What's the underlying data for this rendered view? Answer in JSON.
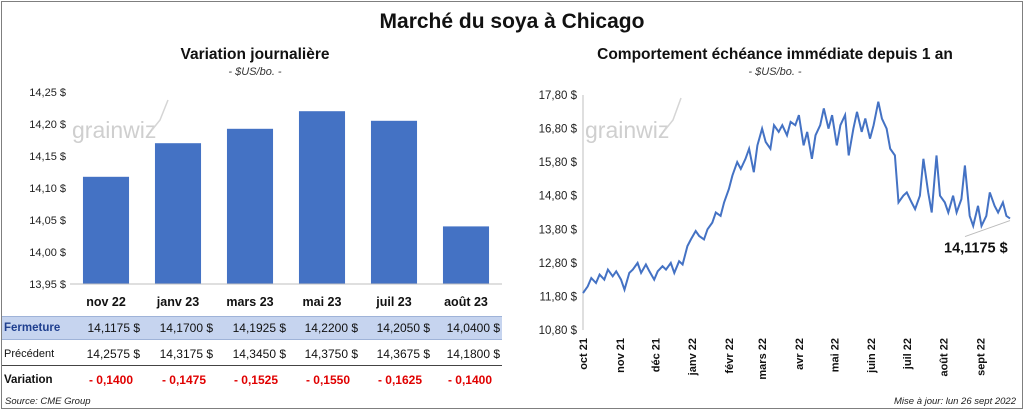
{
  "title": "Marché du soya à Chicago",
  "left_chart": {
    "title": "Variation  journalière",
    "unit": "- $US/bo. -",
    "watermark": "grainwiz"
  },
  "right_chart": {
    "title": "Comportement  échéance immédiate depuis 1 an",
    "unit": "- $US/bo. -",
    "watermark": "grainwiz",
    "annotation": "14,1175 $"
  },
  "table": {
    "rows": [
      {
        "label": "Fermeture",
        "values": [
          "14,1175  $",
          "14,1700  $",
          "14,1925  $",
          "14,2200  $",
          "14,2050  $",
          "14,0400  $"
        ]
      },
      {
        "label": "Précédent",
        "values": [
          "14,2575  $",
          "14,3175  $",
          "14,3450  $",
          "14,3750  $",
          "14,3675  $",
          "14,1800  $"
        ]
      },
      {
        "label": "Variation",
        "values": [
          "- 0,1400",
          "- 0,1475",
          "- 0,1525",
          "- 0,1550",
          "- 0,1625",
          "- 0,1400"
        ]
      }
    ]
  },
  "footer": {
    "source": "Source: CME Group",
    "updated": "Mise à jour: lun 26 sept 2022"
  },
  "colors": {
    "bar": "#4472c4",
    "line": "#4472c4",
    "negative": "#e00000",
    "highlight_row": "#c6d4ef"
  },
  "chart_data": [
    {
      "type": "bar",
      "title": "Variation  journalière",
      "categories": [
        "nov 22",
        "janv 23",
        "mars 23",
        "mai 23",
        "juil 23",
        "août 23"
      ],
      "values": [
        14.1175,
        14.17,
        14.1925,
        14.22,
        14.205,
        14.04
      ],
      "ylim": [
        13.95,
        14.25
      ],
      "yticks": [
        "13,95 $",
        "14,00 $",
        "14,05 $",
        "14,10 $",
        "14,15 $",
        "14,20 $",
        "14,25 $"
      ],
      "grid": false
    },
    {
      "type": "line",
      "title": "Comportement  échéance immédiate depuis 1 an",
      "ylim": [
        10.8,
        17.8
      ],
      "yticks": [
        "10,80 $",
        "11,80 $",
        "12,80 $",
        "13,80 $",
        "14,80 $",
        "15,80 $",
        "16,80 $",
        "17,80 $"
      ],
      "xticks": [
        "oct 21",
        "nov 21",
        "déc 21",
        "janv 22",
        "févr 22",
        "mars 22",
        "avr 22",
        "mai 22",
        "juin 22",
        "juil 22",
        "août 22",
        "sept 22"
      ],
      "x": [
        "2021-10-01",
        "2021-10-05",
        "2021-10-08",
        "2021-10-12",
        "2021-10-15",
        "2021-10-19",
        "2021-10-22",
        "2021-10-26",
        "2021-10-29",
        "2021-11-02",
        "2021-11-05",
        "2021-11-09",
        "2021-11-12",
        "2021-11-16",
        "2021-11-19",
        "2021-11-23",
        "2021-11-26",
        "2021-11-30",
        "2021-12-03",
        "2021-12-07",
        "2021-12-10",
        "2021-12-14",
        "2021-12-17",
        "2021-12-21",
        "2021-12-24",
        "2021-12-28",
        "2021-12-31",
        "2022-01-04",
        "2022-01-07",
        "2022-01-11",
        "2022-01-14",
        "2022-01-18",
        "2022-01-21",
        "2022-01-25",
        "2022-01-28",
        "2022-02-01",
        "2022-02-04",
        "2022-02-08",
        "2022-02-11",
        "2022-02-15",
        "2022-02-18",
        "2022-02-22",
        "2022-02-25",
        "2022-03-01",
        "2022-03-04",
        "2022-03-08",
        "2022-03-11",
        "2022-03-15",
        "2022-03-18",
        "2022-03-22",
        "2022-03-25",
        "2022-03-29",
        "2022-04-01",
        "2022-04-05",
        "2022-04-08",
        "2022-04-12",
        "2022-04-15",
        "2022-04-19",
        "2022-04-22",
        "2022-04-26",
        "2022-04-29",
        "2022-05-03",
        "2022-05-06",
        "2022-05-10",
        "2022-05-13",
        "2022-05-17",
        "2022-05-20",
        "2022-05-24",
        "2022-05-27",
        "2022-05-31",
        "2022-06-03",
        "2022-06-07",
        "2022-06-10",
        "2022-06-14",
        "2022-06-17",
        "2022-06-21",
        "2022-06-24",
        "2022-06-28",
        "2022-07-01",
        "2022-07-05",
        "2022-07-08",
        "2022-07-12",
        "2022-07-15",
        "2022-07-19",
        "2022-07-22",
        "2022-07-26",
        "2022-07-29",
        "2022-08-02",
        "2022-08-05",
        "2022-08-09",
        "2022-08-12",
        "2022-08-16",
        "2022-08-19",
        "2022-08-23",
        "2022-08-26",
        "2022-08-30",
        "2022-09-02",
        "2022-09-06",
        "2022-09-09",
        "2022-09-13",
        "2022-09-16",
        "2022-09-20",
        "2022-09-23",
        "2022-09-26"
      ],
      "values": [
        11.9,
        12.1,
        12.35,
        12.2,
        12.45,
        12.3,
        12.6,
        12.4,
        12.55,
        12.3,
        12.0,
        12.5,
        12.6,
        12.8,
        12.5,
        12.75,
        12.55,
        12.3,
        12.55,
        12.7,
        12.6,
        12.8,
        12.5,
        12.85,
        12.75,
        13.3,
        13.5,
        13.75,
        13.6,
        13.5,
        13.8,
        14.0,
        14.3,
        14.2,
        14.6,
        15.0,
        15.4,
        15.8,
        15.6,
        15.9,
        16.2,
        15.5,
        16.3,
        16.8,
        16.4,
        16.2,
        16.9,
        16.7,
        16.9,
        16.6,
        17.0,
        16.9,
        17.2,
        16.3,
        16.7,
        15.9,
        16.6,
        16.9,
        17.4,
        16.8,
        17.2,
        16.3,
        16.9,
        17.2,
        16.0,
        16.8,
        17.3,
        16.7,
        17.1,
        16.5,
        16.9,
        17.6,
        17.1,
        16.8,
        16.2,
        16.0,
        14.6,
        14.8,
        14.9,
        14.6,
        14.4,
        14.8,
        15.9,
        14.9,
        14.3,
        16.0,
        14.8,
        14.6,
        14.3,
        14.8,
        14.3,
        14.7,
        15.7,
        14.2,
        13.9,
        14.5,
        13.9,
        14.2,
        14.9,
        14.5,
        14.3,
        14.6,
        14.2,
        14.12
      ]
    }
  ]
}
